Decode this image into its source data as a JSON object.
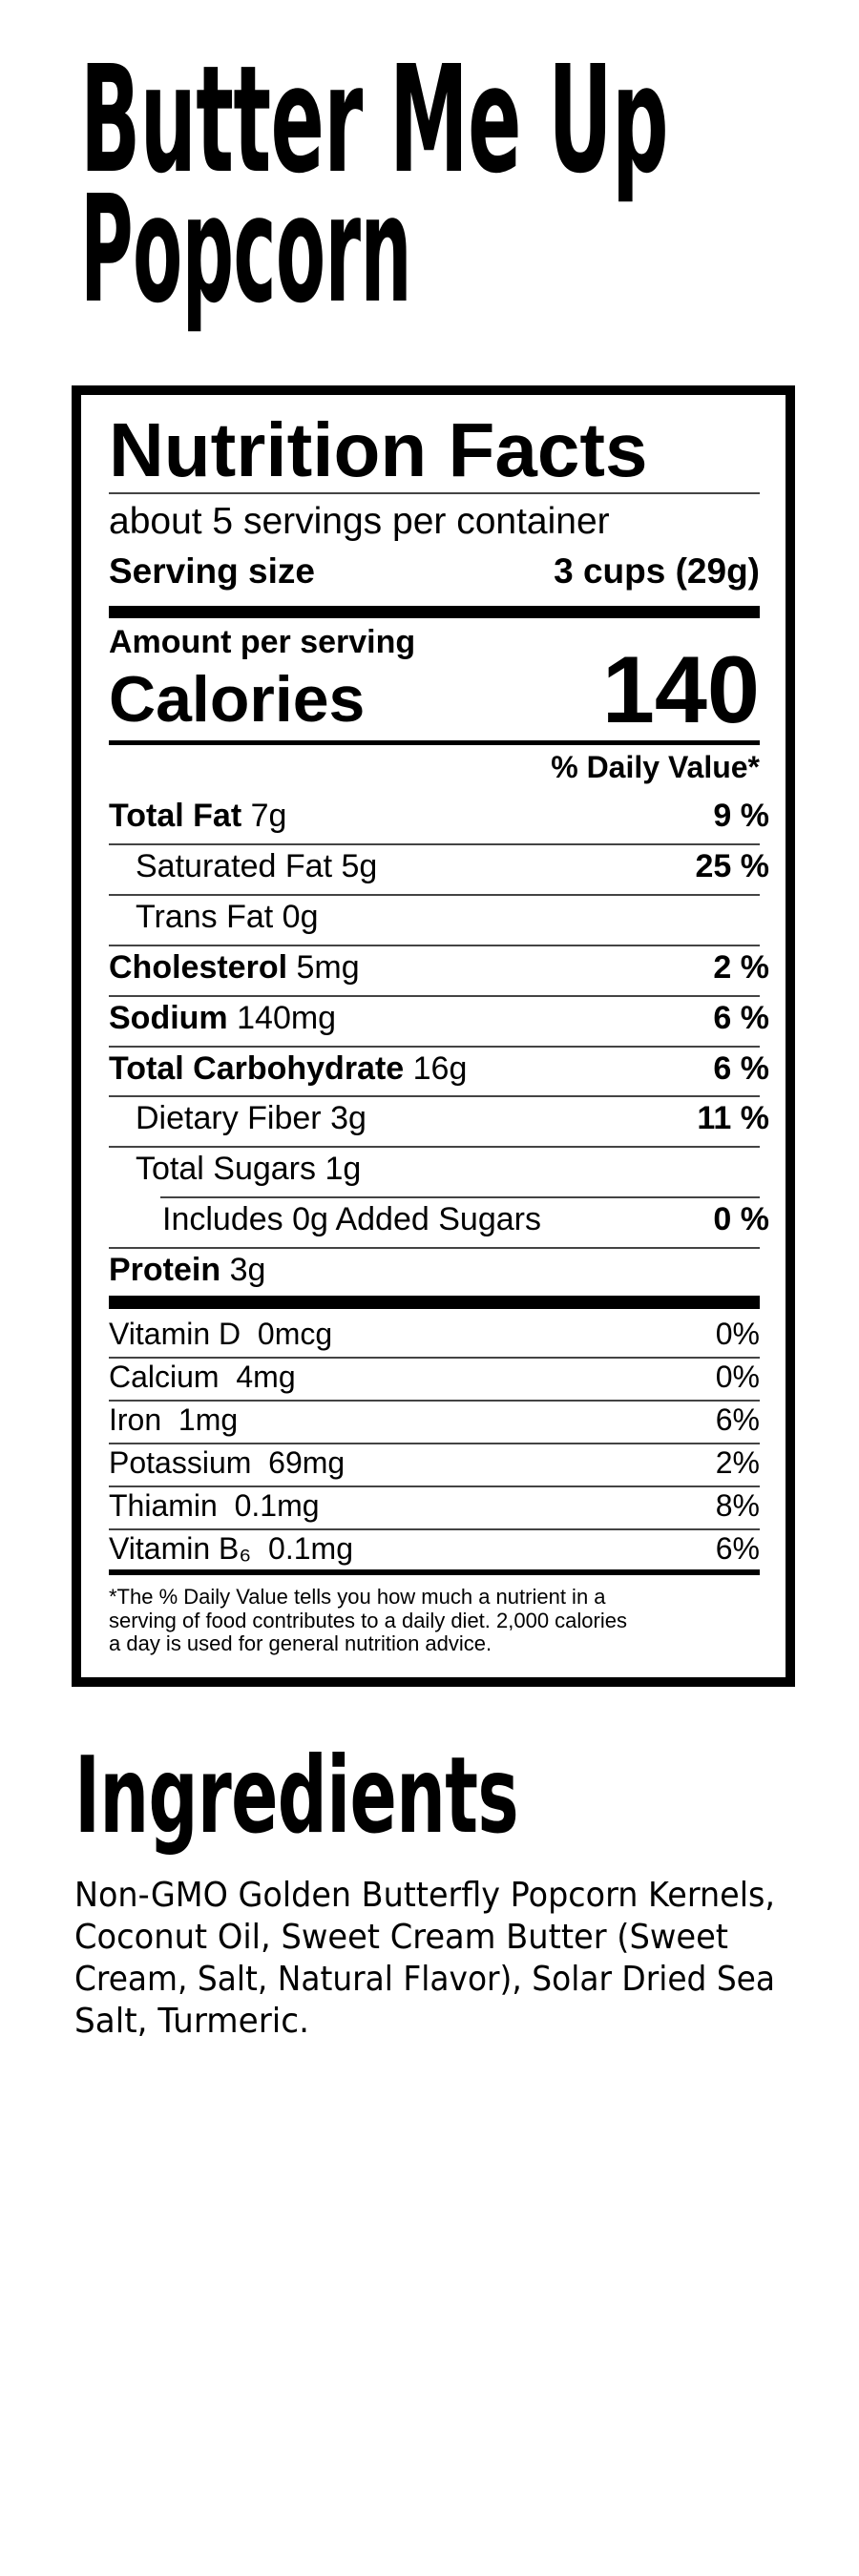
{
  "product": {
    "title_lines": [
      "Butter Me Up",
      "Popcorn"
    ]
  },
  "nutrition": {
    "heading": "Nutrition Facts",
    "servings_per_container": "about 5 servings per container",
    "serving_size_label": "Serving size",
    "serving_size_value": "3 cups (29g)",
    "amount_per_serving": "Amount per serving",
    "calories_label": "Calories",
    "calories_value": "140",
    "daily_value_header": "% Daily Value*",
    "nutrients": [
      {
        "name": "Total Fat",
        "amount": "7g",
        "dv": "9 %",
        "bold": true,
        "indent": 0
      },
      {
        "name": "Saturated Fat",
        "amount": "5g",
        "dv": "25 %",
        "bold": false,
        "indent": 1
      },
      {
        "name": "Trans Fat",
        "amount": "0g",
        "dv": "",
        "bold": false,
        "indent": 1
      },
      {
        "name": "Cholesterol",
        "amount": "5mg",
        "dv": "2 %",
        "bold": true,
        "indent": 0
      },
      {
        "name": "Sodium",
        "amount": "140mg",
        "dv": "6 %",
        "bold": true,
        "indent": 0
      },
      {
        "name": "Total Carbohydrate",
        "amount": "16g",
        "dv": "6 %",
        "bold": true,
        "indent": 0
      },
      {
        "name": "Dietary Fiber",
        "amount": "3g",
        "dv": "11 %",
        "bold": false,
        "indent": 1
      },
      {
        "name": "Total Sugars",
        "amount": "1g",
        "dv": "",
        "bold": false,
        "indent": 1
      },
      {
        "name": "Includes 0g Added Sugars",
        "amount": "",
        "dv": "0 %",
        "bold": false,
        "indent": 2
      },
      {
        "name": "Protein",
        "amount": "3g",
        "dv": "",
        "bold": true,
        "indent": 0
      }
    ],
    "vitamins": [
      {
        "name": "Vitamin D",
        "amount": "0mcg",
        "dv": "0%"
      },
      {
        "name": "Calcium",
        "amount": "4mg",
        "dv": "0%"
      },
      {
        "name": "Iron",
        "amount": "1mg",
        "dv": "6%"
      },
      {
        "name": "Potassium",
        "amount": "69mg",
        "dv": "2%"
      },
      {
        "name": "Thiamin",
        "amount": "0.1mg",
        "dv": "8%"
      },
      {
        "name": "Vitamin B₆",
        "amount": "0.1mg",
        "dv": "6%"
      }
    ],
    "footnote_lines": [
      "*The % Daily Value tells you how much a nutrient in a",
      "serving of food contributes to a daily diet. 2,000 calories",
      "a day is used for general nutrition advice."
    ]
  },
  "ingredients": {
    "heading": "Ingredients",
    "lines": [
      "Non-GMO Golden Butterfly Popcorn Kernels,",
      "Coconut Oil, Sweet Cream Butter (Sweet",
      "Cream, Salt, Natural Flavor), Solar Dried Sea",
      "Salt, Turmeric."
    ]
  }
}
